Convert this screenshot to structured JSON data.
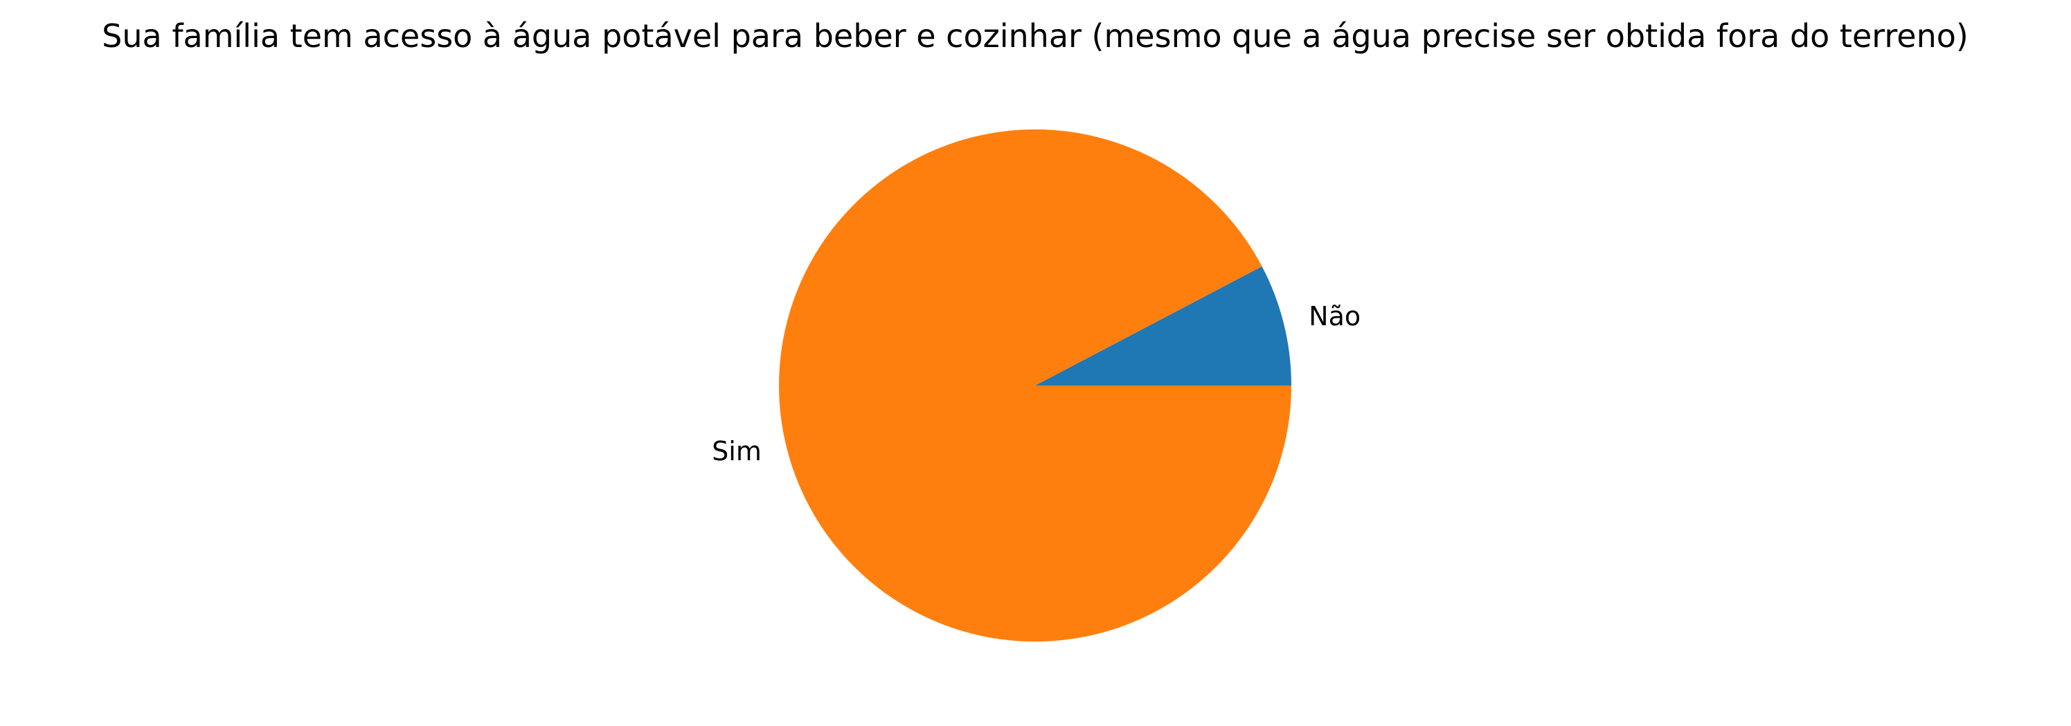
{
  "chart_data": {
    "type": "pie",
    "title": "Sua família tem acesso à água potável para beber e cozinhar (mesmo que a água precise ser obtida fora do terreno)",
    "categories": [
      "Não",
      "Sim"
    ],
    "values": [
      7.7,
      92.3
    ],
    "colors": [
      "#1f77b4",
      "#ff7f0e"
    ],
    "start_angle_deg": 0,
    "direction": "counterclockwise",
    "legend": "none"
  }
}
